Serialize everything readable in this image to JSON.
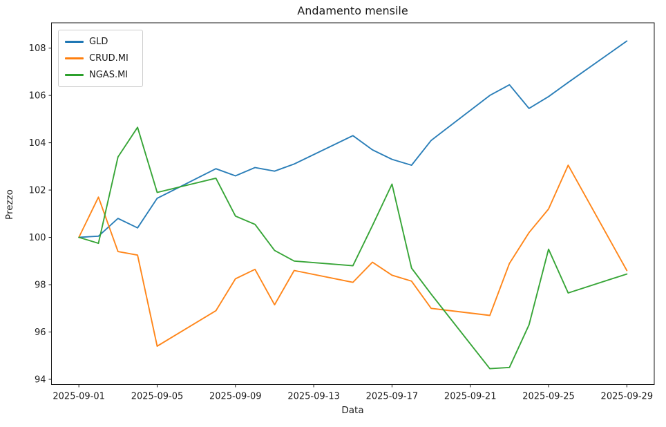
{
  "title": "Andamento mensile",
  "chart_data": {
    "type": "line",
    "title": "Andamento mensile",
    "xlabel": "Data",
    "ylabel": "Prezzo",
    "grid": false,
    "legend_position": "upper left",
    "ylim": [
      93.78,
      109.07
    ],
    "xlim_days": [
      -1.4,
      29.4
    ],
    "y_ticks": [
      94,
      96,
      98,
      100,
      102,
      104,
      106,
      108
    ],
    "x_ticks": [
      {
        "offset": 0,
        "label": "2025-09-01"
      },
      {
        "offset": 4,
        "label": "2025-09-05"
      },
      {
        "offset": 8,
        "label": "2025-09-09"
      },
      {
        "offset": 12,
        "label": "2025-09-13"
      },
      {
        "offset": 16,
        "label": "2025-09-17"
      },
      {
        "offset": 20,
        "label": "2025-09-21"
      },
      {
        "offset": 24,
        "label": "2025-09-25"
      },
      {
        "offset": 28,
        "label": "2025-09-29"
      }
    ],
    "x_dates": [
      "2025-09-01",
      "2025-09-02",
      "2025-09-03",
      "2025-09-04",
      "2025-09-05",
      "2025-09-08",
      "2025-09-09",
      "2025-09-10",
      "2025-09-11",
      "2025-09-12",
      "2025-09-15",
      "2025-09-16",
      "2025-09-17",
      "2025-09-18",
      "2025-09-19",
      "2025-09-22",
      "2025-09-23",
      "2025-09-24",
      "2025-09-25",
      "2025-09-26",
      "2025-09-29"
    ],
    "x_day_offsets": [
      0,
      1,
      2,
      3,
      4,
      7,
      8,
      9,
      10,
      11,
      14,
      15,
      16,
      17,
      18,
      21,
      22,
      23,
      24,
      25,
      28
    ],
    "series": [
      {
        "name": "GLD",
        "color": "#1f77b4",
        "values": [
          100.0,
          100.05,
          100.8,
          100.4,
          101.65,
          102.9,
          102.6,
          102.95,
          102.8,
          103.1,
          104.3,
          103.7,
          103.3,
          103.05,
          104.1,
          106.0,
          106.45,
          105.45,
          105.95,
          106.55,
          108.3
        ]
      },
      {
        "name": "CRUD.MI",
        "color": "#ff7f0e",
        "values": [
          100.0,
          101.7,
          99.4,
          99.25,
          95.4,
          96.9,
          98.25,
          98.65,
          97.15,
          98.6,
          98.1,
          98.95,
          98.4,
          98.15,
          97.0,
          96.7,
          98.9,
          100.2,
          101.2,
          103.05,
          98.6
        ]
      },
      {
        "name": "NGAS.MI",
        "color": "#2ca02c",
        "values": [
          100.0,
          99.75,
          103.4,
          104.65,
          101.9,
          102.5,
          100.9,
          100.55,
          99.45,
          99.0,
          98.8,
          100.5,
          102.25,
          98.7,
          97.6,
          94.45,
          94.5,
          96.3,
          99.5,
          97.65,
          98.45
        ]
      }
    ]
  }
}
